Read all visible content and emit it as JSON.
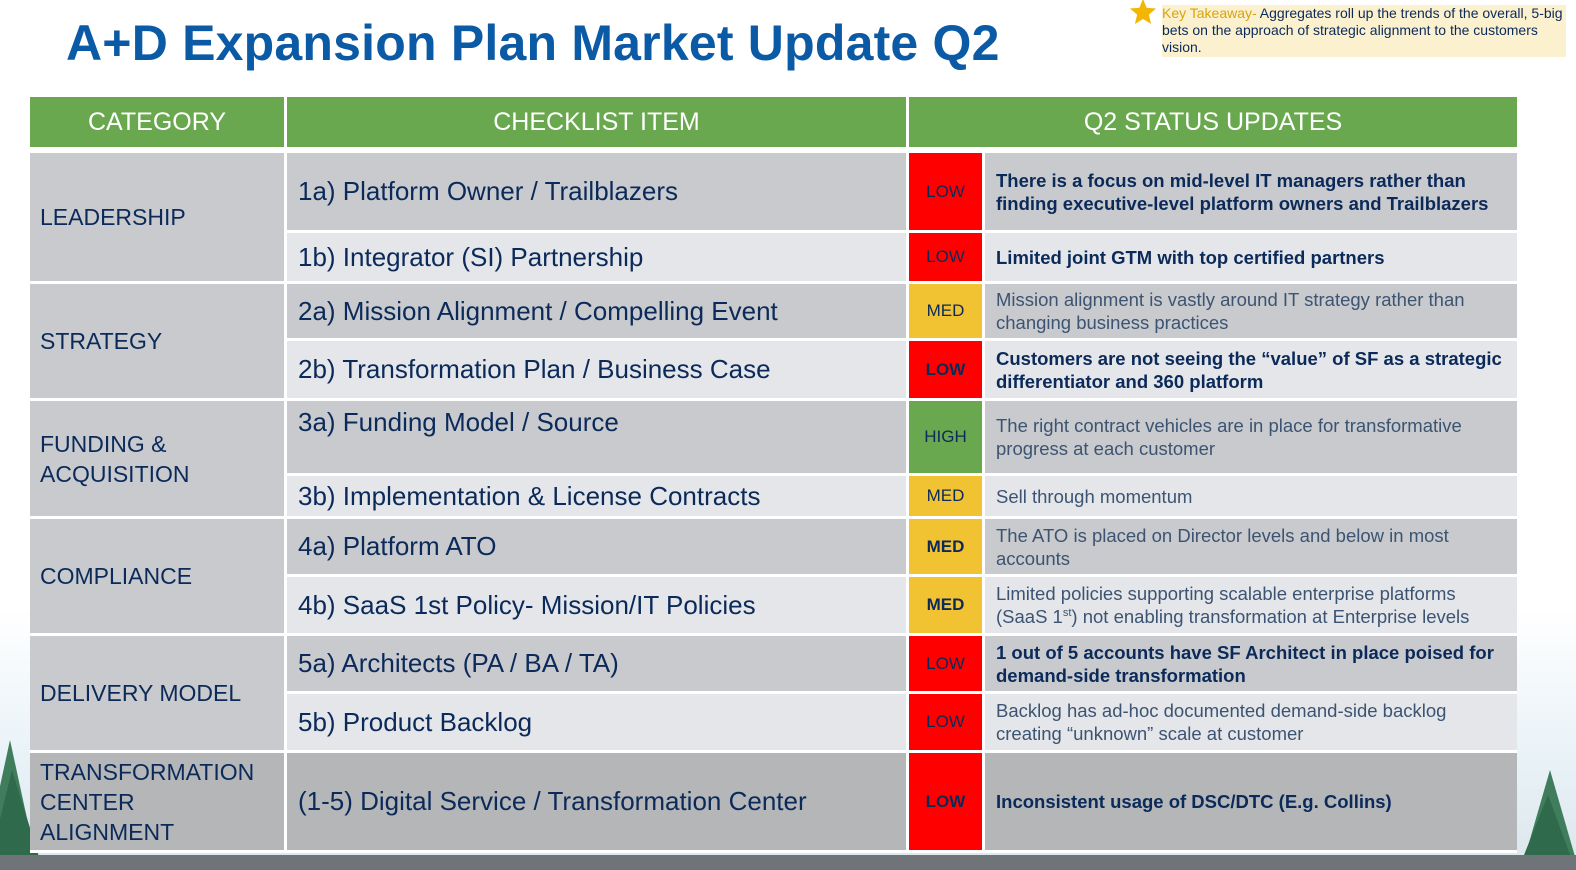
{
  "title": "A+D Expansion Plan Market Update Q2",
  "takeaway": {
    "lead": "Key Takeaway-",
    "text": " Aggregates roll up the trends of the overall, 5-big bets on the approach of strategic alignment to the customers vision.",
    "icon": "star-icon"
  },
  "colors": {
    "header_green": "#6aa84f",
    "low": "#ff0000",
    "med": "#f1c232",
    "high": "#6aa84f",
    "title_blue": "#0b5aa6"
  },
  "table": {
    "headers": [
      "CATEGORY",
      "CHECKLIST ITEM",
      "Q2 STATUS UPDATES"
    ],
    "categories": {
      "leadership": "LEADERSHIP",
      "strategy": "STRATEGY",
      "funding_1": "FUNDING &",
      "funding_2": "ACQUISITION",
      "compliance": "COMPLIANCE",
      "delivery": "DELIVERY MODEL",
      "transformation_1": "TRANSFORMATION",
      "transformation_2": "CENTER",
      "transformation_3": "ALIGNMENT"
    },
    "rows": [
      {
        "item": "1a) Platform Owner / Trailblazers",
        "status": "LOW",
        "update": "There is a focus on mid-level IT managers rather than finding executive-level platform owners and Trailblazers"
      },
      {
        "item": "1b) Integrator (SI) Partnership",
        "status": "LOW",
        "update": "Limited joint GTM with top certified partners"
      },
      {
        "item": "2a) Mission Alignment / Compelling Event",
        "status": "MED",
        "update": "Mission alignment is vastly around IT strategy rather than changing business practices"
      },
      {
        "item": "2b) Transformation Plan / Business Case",
        "status": "LOW",
        "update": "Customers are not seeing the “value” of SF as a strategic differentiator and 360 platform"
      },
      {
        "item": "3a) Funding Model / Source",
        "status": "HIGH",
        "update": "The right contract vehicles are in place for transformative progress at each customer"
      },
      {
        "item": "3b) Implementation & License Contracts",
        "status": "MED",
        "update": "Sell through momentum"
      },
      {
        "item": "4a) Platform ATO",
        "status": "MED",
        "update": "The ATO is placed on Director levels and below in most accounts"
      },
      {
        "item": "4b) SaaS 1st Policy- Mission/IT Policies",
        "status": "MED",
        "update_a": "Limited policies supporting scalable enterprise platforms (SaaS 1",
        "update_sup": "st",
        "update_b": ") not enabling transformation at Enterprise levels"
      },
      {
        "item": "5a) Architects (PA / BA / TA)",
        "status": "LOW",
        "update": "1 out of 5 accounts have SF Architect in place poised for demand-side transformation"
      },
      {
        "item": "5b) Product Backlog",
        "status": "LOW",
        "update": "Backlog has ad-hoc documented demand-side backlog creating “unknown” scale at customer"
      },
      {
        "item": "(1-5) Digital Service / Transformation Center",
        "status": "LOW",
        "update": "Inconsistent usage of DSC/DTC (E.g. Collins)"
      }
    ]
  }
}
